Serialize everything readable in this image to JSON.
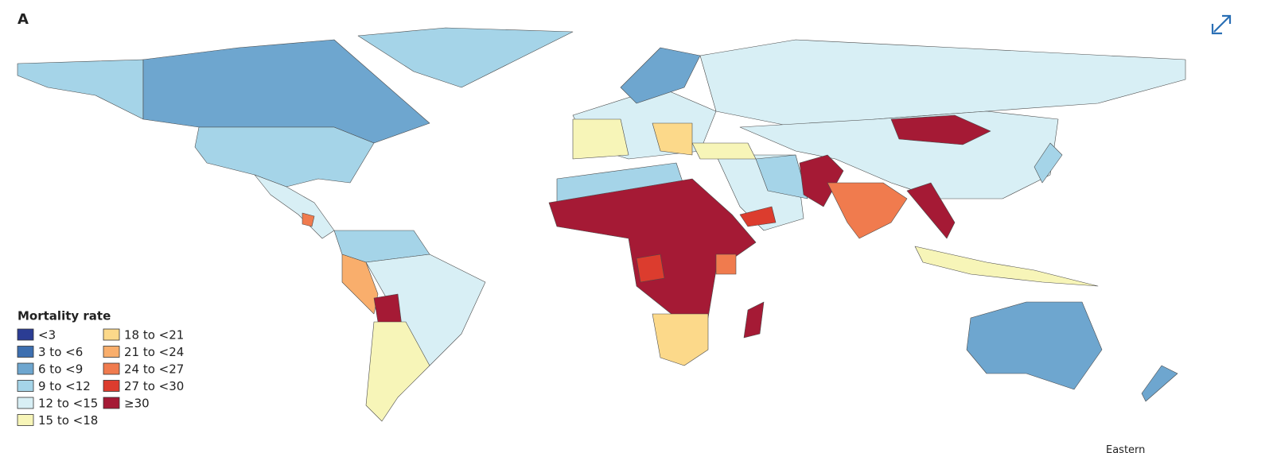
{
  "panel_label": "A",
  "legend": {
    "title": "Mortality rate",
    "items": [
      {
        "label": "<3",
        "color": "#2b3d94"
      },
      {
        "label": "3 to <6",
        "color": "#3d6fb0"
      },
      {
        "label": "6 to <9",
        "color": "#6ea6cf"
      },
      {
        "label": "9 to <12",
        "color": "#a5d4e8"
      },
      {
        "label": "12 to <15",
        "color": "#d8eff5"
      },
      {
        "label": "15 to <18",
        "color": "#f7f5b8"
      },
      {
        "label": "18 to <21",
        "color": "#fcd98a"
      },
      {
        "label": "21 to <24",
        "color": "#f9ae6c"
      },
      {
        "label": "24 to <27",
        "color": "#f07b4e"
      },
      {
        "label": "27 to <30",
        "color": "#dc3c2e"
      },
      {
        "label": "≥30",
        "color": "#a51a35"
      }
    ]
  },
  "footer_fragment": "Eastern"
}
